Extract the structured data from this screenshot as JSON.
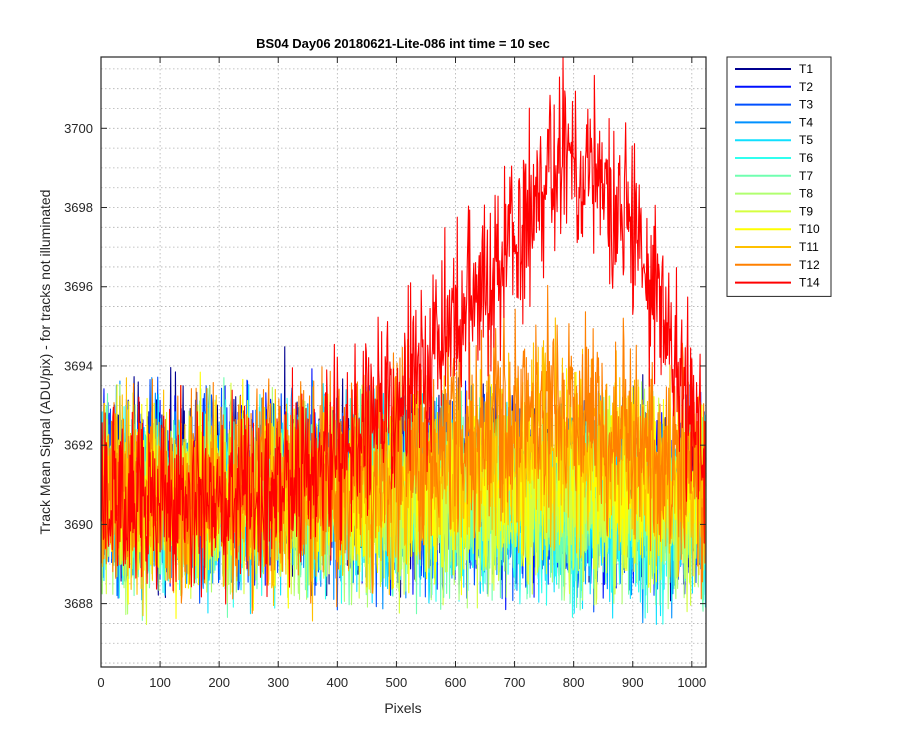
{
  "chart_data": {
    "type": "line",
    "title": "BS04 Day06 20180621-Lite-086 int time = 10 sec",
    "xlabel": "Pixels",
    "ylabel": "Track Mean Signal (ADU/pix) - for tracks not illuminated",
    "xlim": [
      0,
      1024
    ],
    "ylim": [
      3686.4,
      3701.8
    ],
    "xticks": [
      0,
      100,
      200,
      300,
      400,
      500,
      600,
      700,
      800,
      900,
      1000
    ],
    "yticks": [
      3688,
      3690,
      3692,
      3694,
      3696,
      3698,
      3700
    ],
    "grid": "major and minor, dotted",
    "legend_position": "outside-right",
    "series": [
      {
        "name": "T1",
        "color": "#00008f",
        "approx_mean_by_x": [
          [
            0,
            3691.2
          ],
          [
            400,
            3691.2
          ],
          [
            1024,
            3690.8
          ]
        ],
        "noise_range": 3.0
      },
      {
        "name": "T2",
        "color": "#0010ff",
        "approx_mean_by_x": [
          [
            0,
            3691.0
          ],
          [
            400,
            3691.0
          ],
          [
            1024,
            3690.6
          ]
        ],
        "noise_range": 3.0
      },
      {
        "name": "T3",
        "color": "#0050ff",
        "approx_mean_by_x": [
          [
            0,
            3690.9
          ],
          [
            400,
            3690.8
          ],
          [
            1024,
            3690.5
          ]
        ],
        "noise_range": 3.0
      },
      {
        "name": "T4",
        "color": "#0090ff",
        "approx_mean_by_x": [
          [
            0,
            3690.8
          ],
          [
            400,
            3690.8
          ],
          [
            1024,
            3690.4
          ]
        ],
        "noise_range": 3.0
      },
      {
        "name": "T5",
        "color": "#10e0ff",
        "approx_mean_by_x": [
          [
            0,
            3690.7
          ],
          [
            400,
            3690.7
          ],
          [
            1024,
            3690.3
          ]
        ],
        "noise_range": 3.0
      },
      {
        "name": "T6",
        "color": "#30ffef",
        "approx_mean_by_x": [
          [
            0,
            3690.7
          ],
          [
            400,
            3690.6
          ],
          [
            1024,
            3690.3
          ]
        ],
        "noise_range": 3.0
      },
      {
        "name": "T7",
        "color": "#70ffb0",
        "approx_mean_by_x": [
          [
            0,
            3690.6
          ],
          [
            400,
            3690.6
          ],
          [
            1024,
            3690.4
          ]
        ],
        "noise_range": 3.0
      },
      {
        "name": "T8",
        "color": "#b0ff70",
        "approx_mean_by_x": [
          [
            0,
            3690.6
          ],
          [
            400,
            3690.6
          ],
          [
            1024,
            3690.5
          ]
        ],
        "noise_range": 3.0
      },
      {
        "name": "T9",
        "color": "#d5ff40",
        "approx_mean_by_x": [
          [
            0,
            3690.6
          ],
          [
            400,
            3690.7
          ],
          [
            1024,
            3690.6
          ]
        ],
        "noise_range": 3.0
      },
      {
        "name": "T10",
        "color": "#ffff00",
        "approx_mean_by_x": [
          [
            0,
            3690.6
          ],
          [
            450,
            3690.8
          ],
          [
            780,
            3691.5
          ],
          [
            1024,
            3690.7
          ]
        ],
        "noise_range": 3.0
      },
      {
        "name": "T11",
        "color": "#ffc000",
        "approx_mean_by_x": [
          [
            0,
            3690.6
          ],
          [
            450,
            3691.0
          ],
          [
            780,
            3692.3
          ],
          [
            1024,
            3691.0
          ]
        ],
        "noise_range": 3.2
      },
      {
        "name": "T12",
        "color": "#ff8000",
        "approx_mean_by_x": [
          [
            0,
            3690.7
          ],
          [
            450,
            3691.2
          ],
          [
            780,
            3693.0
          ],
          [
            1024,
            3691.2
          ]
        ],
        "noise_range": 3.2
      },
      {
        "name": "T14",
        "color": "#ff0000",
        "approx_mean_by_x": [
          [
            0,
            3690.4
          ],
          [
            250,
            3690.7
          ],
          [
            400,
            3691.6
          ],
          [
            550,
            3694.0
          ],
          [
            780,
            3699.3
          ],
          [
            900,
            3697.5
          ],
          [
            1024,
            3692.0
          ]
        ],
        "noise_range": 3.0
      }
    ]
  }
}
